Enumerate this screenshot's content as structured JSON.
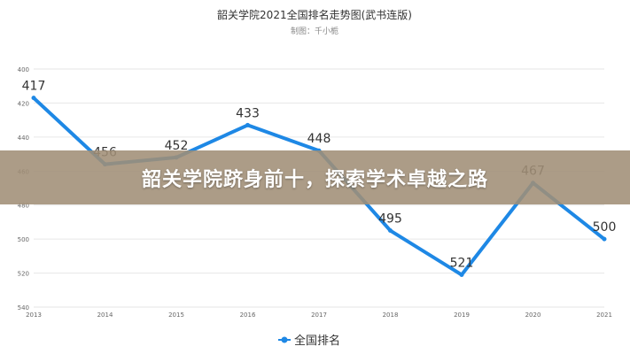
{
  "chart_data": {
    "type": "line",
    "title": "韶关学院2021全国排名走势图(武书连版)",
    "subtitle": "制图：千小栀",
    "x": [
      "2013",
      "2014",
      "2015",
      "2016",
      "2017",
      "2018",
      "2019",
      "2020",
      "2021"
    ],
    "series": [
      {
        "name": "全国排名",
        "values": [
          417,
          456,
          452,
          433,
          448,
          495,
          521,
          467,
          500
        ],
        "color": "#1e88e5"
      }
    ],
    "data_labels": [
      "417",
      "456",
      "452",
      "433",
      "448",
      "495",
      "521",
      "467",
      "500"
    ],
    "yticks": [
      "400",
      "420",
      "440",
      "460",
      "480",
      "500",
      "520",
      "540"
    ],
    "ylim": [
      400,
      540
    ],
    "y_inverted": true,
    "grid": true,
    "legend_position": "bottom-center"
  },
  "banner": {
    "text": "韶关学院跻身前十，探索学术卓越之路"
  }
}
